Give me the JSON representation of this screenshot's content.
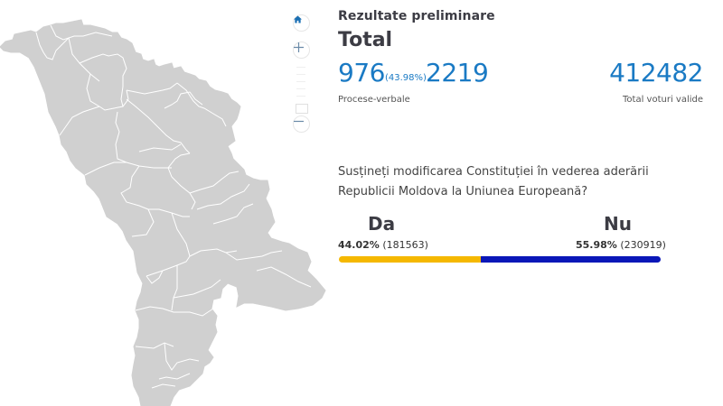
{
  "map": {
    "controls": {
      "home_icon": "home-icon",
      "zoom_in_icon": "plus-icon",
      "zoom_out_icon": "minus-icon"
    },
    "fill_color": "#d0d0d0",
    "border_color": "#ffffff"
  },
  "panel": {
    "subtitle": "Rezultate preliminare",
    "title": "Total",
    "protocols_counted": "976",
    "protocols_percent": "(43.98%)",
    "protocols_total": "2219",
    "protocols_label": "Procese-verbale",
    "valid_votes": "412482",
    "valid_votes_label": "Total voturi valide"
  },
  "question": {
    "text": "Susțineți modificarea Constituției în vederea aderării Republicii Moldova la Uniunea Europeană?"
  },
  "results": {
    "yes": {
      "label": "Da",
      "percent": "44.02%",
      "votes": "(181563)",
      "color": "#f5b800",
      "share": 44.02
    },
    "no": {
      "label": "Nu",
      "percent": "55.98%",
      "votes": "(230919)",
      "color": "#0a17b8",
      "share": 55.98
    }
  },
  "colors": {
    "accent": "#1a7ac4",
    "heading": "#3c3c44"
  }
}
